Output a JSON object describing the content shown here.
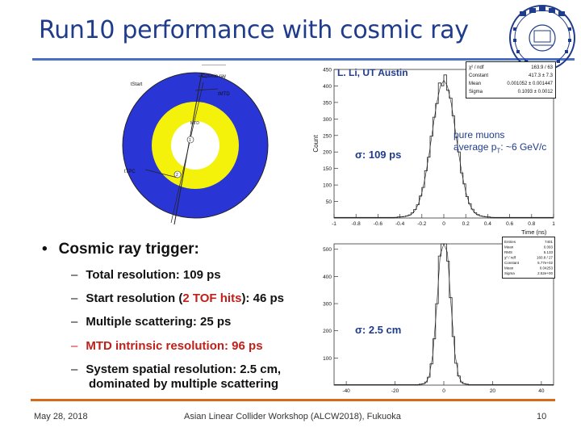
{
  "slide": {
    "title": "Run10 performance with cosmic ray",
    "author_note": "L. Li, UT Austin",
    "pure_muons_line1": "pure muons",
    "pure_muons_line2_prefix": "average p",
    "pure_muons_line2_sub": "T",
    "pure_muons_line2_suffix": ": ~6 GeV/c",
    "sigma_time": "σ: 109 ps",
    "sigma_space": "σ: 2.5 cm",
    "bullet_main": "Cosmic ray trigger:",
    "subs": {
      "total": "Total resolution: 109 ps",
      "start_prefix": "Start resolution (",
      "start_red": "2 TOF hits",
      "start_suffix": "): 46 ps",
      "multiple": "Multiple scattering: 25 ps",
      "mtd": "MTD intrinsic resolution: 96 ps",
      "spatial_line1": "System spatial resolution: 2.5 cm,",
      "spatial_line2": "dominated by multiple scattering"
    },
    "footer": {
      "date": "May 28, 2018",
      "event": "Asian Linear Collider Workshop (ALCW2018), Fukuoka",
      "page": "10"
    }
  },
  "detector_diagram": {
    "labels": [
      "Cosmic ray",
      "tStart",
      "tMTD",
      "tTPC",
      "MTD",
      "1",
      "2"
    ]
  },
  "stats_box_time": {
    "rows": [
      {
        "k": "χ² / ndf",
        "v": "163.9 / 63"
      },
      {
        "k": "Constant",
        "v": "417.3 ± 7.3"
      },
      {
        "k": "Mean",
        "v": "0.001052 ± 0.001447"
      },
      {
        "k": "Sigma",
        "v": "0.1093 ± 0.0012"
      }
    ]
  },
  "stats_box_space": {
    "rows": [
      {
        "k": "Entries",
        "v": "7401"
      },
      {
        "k": "Mean",
        "v": "0.093"
      },
      {
        "k": "RMS",
        "v": "5.133"
      },
      {
        "k": "χ² / ndf",
        "v": "160.8 / 27"
      },
      {
        "k": "Constant",
        "v": "5.77e+02"
      },
      {
        "k": "Mean",
        "v": "0.04253"
      },
      {
        "k": "Sigma",
        "v": "2.52e+00"
      }
    ]
  },
  "chart_data": [
    {
      "type": "line",
      "title": "",
      "xlabel": "Time (ns)",
      "ylabel": "Count",
      "xlim": [
        -1,
        1
      ],
      "ylim": [
        0,
        450
      ],
      "xticks": [
        "-1",
        "-0.8",
        "-0.6",
        "-0.4",
        "-0.2",
        "0",
        "0.2",
        "0.4",
        "0.6",
        "0.8",
        "1"
      ],
      "yticks": [
        "50",
        "100",
        "150",
        "200",
        "250",
        "300",
        "350",
        "400",
        "450"
      ],
      "gauss": {
        "constant": 417.3,
        "mean": 0.001,
        "sigma": 0.109
      }
    },
    {
      "type": "line",
      "title": "",
      "xlabel": "",
      "ylabel": "",
      "xlim": [
        -45,
        45
      ],
      "ylim": [
        0,
        520
      ],
      "xticks": [
        "-40",
        "-20",
        "0",
        "20",
        "40"
      ],
      "yticks": [
        "100",
        "200",
        "300",
        "400",
        "500"
      ],
      "gauss": {
        "constant": 577,
        "mean": 0.04,
        "sigma": 2.52
      }
    }
  ]
}
